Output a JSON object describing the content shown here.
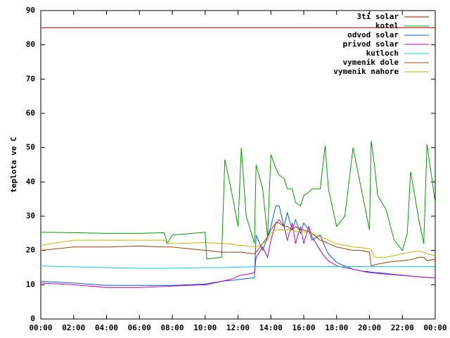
{
  "chart_data": {
    "type": "line",
    "y_label": "teplota ve C",
    "x": [
      0,
      2,
      4,
      6,
      7.5,
      7.7,
      8,
      10,
      10.1,
      11,
      11.2,
      11.7,
      12,
      12.2,
      12.5,
      13,
      13.1,
      13.5,
      13.8,
      14,
      14.3,
      14.5,
      14.8,
      15,
      15.3,
      15.5,
      15.8,
      16,
      16.3,
      16.5,
      17,
      17.3,
      17.5,
      18,
      18.5,
      19,
      19.5,
      20,
      20.1,
      20.3,
      20.5,
      21,
      21.5,
      22,
      22.3,
      22.5,
      23,
      23.3,
      23.5,
      24
    ],
    "xlim": [
      0,
      24
    ],
    "xticks": [
      {
        "value": 0,
        "label": "00:00"
      },
      {
        "value": 2,
        "label": "02:00"
      },
      {
        "value": 4,
        "label": "04:00"
      },
      {
        "value": 6,
        "label": "06:00"
      },
      {
        "value": 8,
        "label": "08:00"
      },
      {
        "value": 10,
        "label": "10:00"
      },
      {
        "value": 12,
        "label": "12:00"
      },
      {
        "value": 14,
        "label": "14:00"
      },
      {
        "value": 16,
        "label": "16:00"
      },
      {
        "value": 18,
        "label": "18:00"
      },
      {
        "value": 20,
        "label": "20:00"
      },
      {
        "value": 22,
        "label": "22:00"
      },
      {
        "value": 24,
        "label": "00:00"
      }
    ],
    "ylim": [
      0,
      90
    ],
    "yticks": [
      0,
      10,
      20,
      30,
      40,
      50,
      60,
      70,
      80,
      90
    ],
    "legend": "top-right",
    "series": [
      {
        "name": "3ti solar",
        "color": "#cc0000",
        "values": [
          85,
          85,
          85,
          85,
          85,
          85,
          85,
          85,
          85,
          85,
          85,
          85,
          85,
          85,
          85,
          85,
          85,
          85,
          85,
          85,
          85,
          85,
          85,
          85,
          85,
          85,
          85,
          85,
          85,
          85,
          85,
          85,
          85,
          85,
          85,
          85,
          85,
          85,
          85,
          85,
          85,
          85,
          85,
          85,
          85,
          85,
          85,
          85,
          85,
          85
        ]
      },
      {
        "name": "kotel",
        "color": "#00a000",
        "values": [
          25.3,
          25.2,
          25,
          25,
          25.2,
          22,
          24.5,
          25.3,
          17.5,
          18,
          46.5,
          35,
          27,
          50,
          30,
          22,
          45,
          38,
          24,
          48,
          44,
          42,
          41,
          38,
          38,
          34,
          33,
          36,
          37,
          38,
          38,
          50.5,
          38,
          27,
          30,
          50,
          38,
          26,
          52,
          45,
          36,
          32,
          23,
          20,
          25,
          43,
          29,
          22,
          51,
          34
        ]
      },
      {
        "name": "odvod solar",
        "color": "#0060e0",
        "values": [
          11,
          10.5,
          9.8,
          9.8,
          9.8,
          9.8,
          9.8,
          10.2,
          10.3,
          11,
          11.1,
          11.3,
          11.5,
          11.6,
          11.8,
          12,
          24.5,
          20,
          24,
          27,
          33,
          33,
          27,
          31,
          26,
          29,
          25,
          28,
          26,
          23,
          24.5,
          21,
          19,
          16.5,
          15.5,
          14.5,
          14,
          13.8,
          13.7,
          13.6,
          13.5,
          13.3,
          13,
          12.8,
          12.6,
          12.5,
          12.3,
          12.2,
          12.1,
          12
        ]
      },
      {
        "name": "privod solar",
        "color": "#c000c0",
        "values": [
          10.5,
          10,
          9.2,
          9.2,
          9.5,
          9.5,
          9.6,
          10,
          10,
          11,
          11.2,
          11.8,
          12.5,
          12.8,
          13,
          13.5,
          18,
          21,
          18,
          23,
          28,
          29,
          27,
          23,
          28,
          22,
          27,
          22,
          27,
          24,
          20,
          18,
          17,
          15.5,
          15,
          14.5,
          14,
          13.5,
          13.5,
          13.4,
          13.3,
          13.1,
          12.9,
          12.7,
          12.6,
          12.5,
          12.3,
          12.2,
          12.1,
          12
        ]
      },
      {
        "name": "kutloch",
        "color": "#00d8d8",
        "values": [
          15.5,
          15.2,
          15,
          14.8,
          14.8,
          14.8,
          14.8,
          15,
          15,
          15,
          15,
          15.1,
          15.1,
          15.1,
          15.2,
          15.2,
          15.3,
          15.3,
          15.3,
          15.3,
          15.3,
          15.3,
          15.3,
          15.3,
          15.3,
          15.3,
          15.3,
          15.3,
          15.3,
          15.3,
          15.3,
          15.3,
          15.3,
          15.3,
          15.3,
          15.3,
          15.3,
          15.3,
          15.3,
          15.3,
          15.3,
          15.3,
          15.3,
          15.3,
          15.3,
          15.3,
          15.3,
          15.3,
          15.3,
          15.3
        ]
      },
      {
        "name": "vymenik dole",
        "color": "#a04000",
        "values": [
          20,
          21,
          21,
          21.3,
          21,
          21,
          21,
          20,
          20,
          19.5,
          19.5,
          19.5,
          19.5,
          19.5,
          19.3,
          19,
          19.5,
          22,
          24,
          26,
          28,
          28,
          27,
          27,
          26,
          27,
          26,
          26,
          25.5,
          25,
          23,
          22.5,
          22,
          21,
          20.5,
          20,
          20,
          19.5,
          15.5,
          15.8,
          16,
          16.5,
          16.8,
          17,
          17.2,
          17.3,
          18,
          18,
          17,
          17.5
        ]
      },
      {
        "name": "vymenik nahore",
        "color": "#c8b400",
        "values": [
          21.5,
          23,
          23,
          23,
          23,
          22,
          22,
          22.3,
          22.3,
          22,
          22,
          21.8,
          21.5,
          21.5,
          21.3,
          21,
          21,
          22,
          23,
          25,
          26,
          26,
          26,
          26,
          26,
          25.5,
          25.5,
          25.5,
          25,
          25,
          24,
          23.5,
          23,
          22,
          21.5,
          21,
          20.8,
          20.5,
          20.3,
          18,
          18,
          18,
          18.5,
          19,
          19.3,
          19.5,
          19.8,
          19.5,
          19,
          18.5
        ]
      }
    ]
  }
}
